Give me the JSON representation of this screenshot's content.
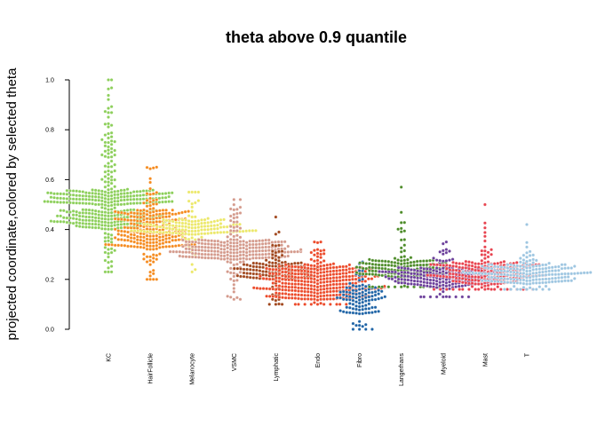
{
  "chart_data": {
    "type": "scatter",
    "subtype": "beeswarm",
    "title": "theta above 0.9 quantile",
    "ylabel": "projected coordinate,colored by selected theta",
    "xlabel": "",
    "ylim": [
      0,
      1
    ],
    "yticks": [
      "0.0",
      "0.2",
      "0.4",
      "0.6",
      "0.8",
      "1.0"
    ],
    "ytick_values": [
      0,
      0.2,
      0.4,
      0.6,
      0.8,
      1.0
    ],
    "grid": false,
    "legend": "none",
    "categories": [
      "KC",
      "HairFollicle",
      "Melanocyte",
      "VSMC",
      "Lymphatic",
      "Endo",
      "Fibro",
      "Langerhans",
      "Myeloid",
      "Mast",
      "T"
    ],
    "series": [
      {
        "category": "KC",
        "color": "#8ccf5a",
        "count": 420,
        "min": 0.23,
        "max": 1.0,
        "dense_bands": [
          [
            0.4,
            0.48
          ],
          [
            0.5,
            0.56
          ]
        ],
        "median": 0.53
      },
      {
        "category": "HairFollicle",
        "color": "#f58b1f",
        "count": 260,
        "min": 0.2,
        "max": 0.65,
        "dense_bands": [
          [
            0.33,
            0.48
          ]
        ],
        "median": 0.41
      },
      {
        "category": "Melanocyte",
        "color": "#ece86a",
        "count": 150,
        "min": 0.23,
        "max": 0.55,
        "dense_bands": [
          [
            0.38,
            0.44
          ]
        ],
        "median": 0.4
      },
      {
        "category": "VSMC",
        "color": "#d49a8c",
        "count": 260,
        "min": 0.12,
        "max": 0.52,
        "dense_bands": [
          [
            0.28,
            0.36
          ]
        ],
        "median": 0.32
      },
      {
        "category": "Lymphatic",
        "color": "#a0461c",
        "count": 150,
        "min": 0.1,
        "max": 0.45,
        "dense_bands": [
          [
            0.2,
            0.27
          ]
        ],
        "median": 0.23
      },
      {
        "category": "Endo",
        "color": "#ec4a2a",
        "count": 360,
        "min": 0.1,
        "max": 0.35,
        "dense_bands": [
          [
            0.12,
            0.26
          ]
        ],
        "median": 0.2
      },
      {
        "category": "Fibro",
        "color": "#1f64a6",
        "count": 110,
        "min": 0.0,
        "max": 0.27,
        "dense_bands": [
          [
            0.06,
            0.18
          ]
        ],
        "median": 0.12
      },
      {
        "category": "Langerhans",
        "color": "#4d8c29",
        "count": 170,
        "min": 0.17,
        "max": 0.57,
        "dense_bands": [
          [
            0.21,
            0.28
          ]
        ],
        "median": 0.24
      },
      {
        "category": "Myeloid",
        "color": "#6b3e9a",
        "count": 220,
        "min": 0.13,
        "max": 0.35,
        "dense_bands": [
          [
            0.17,
            0.25
          ]
        ],
        "median": 0.21
      },
      {
        "category": "Mast",
        "color": "#e8434f",
        "count": 220,
        "min": 0.16,
        "max": 0.5,
        "dense_bands": [
          [
            0.18,
            0.27
          ]
        ],
        "median": 0.22
      },
      {
        "category": "T",
        "color": "#9ec6e1",
        "count": 200,
        "min": 0.16,
        "max": 0.42,
        "dense_bands": [
          [
            0.18,
            0.26
          ]
        ],
        "median": 0.22
      }
    ]
  }
}
